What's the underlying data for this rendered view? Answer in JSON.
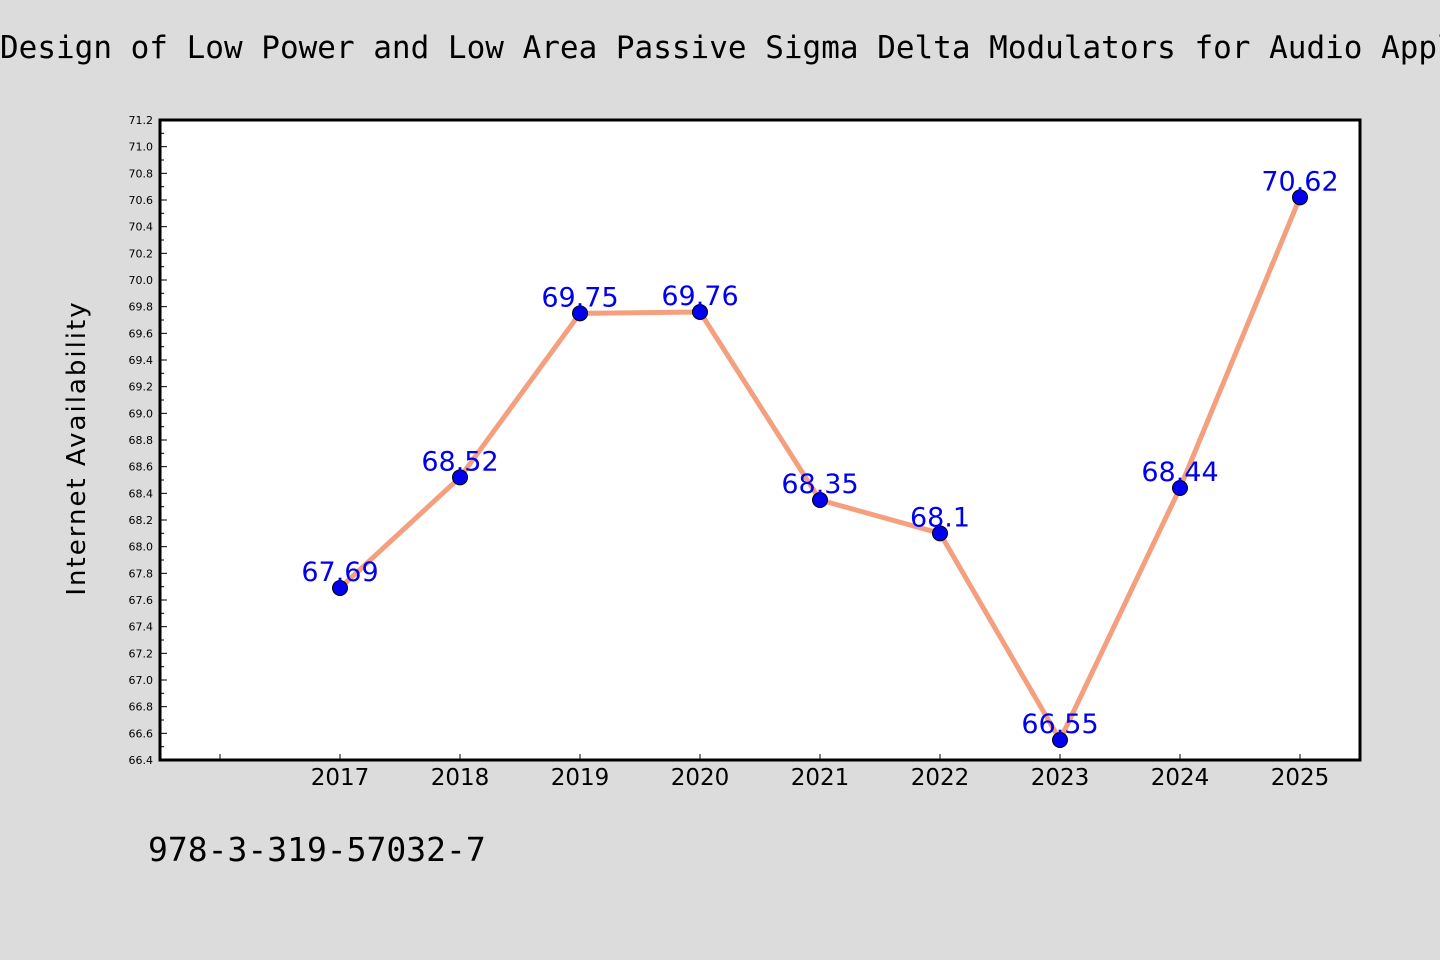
{
  "header": {
    "title": "Design of Low Power and Low Area Passive Sigma Delta Modulators for Audio Applic"
  },
  "footer": {
    "text": "978-3-319-57032-7"
  },
  "chart_data": {
    "type": "line",
    "title": "Design of Low Power and Low Area Passive Sigma Delta Modulators for Audio Applic",
    "xlabel": "",
    "ylabel": "Internet Availability",
    "categories": [
      "2017",
      "2018",
      "2019",
      "2020",
      "2021",
      "2022",
      "2023",
      "2024",
      "2025"
    ],
    "series": [
      {
        "values": [
          67.69,
          68.52,
          69.75,
          69.76,
          68.35,
          68.1,
          66.55,
          68.44,
          70.62
        ],
        "labels": [
          "67.69",
          "68.52",
          "69.75",
          "69.76",
          "68.35",
          "68.1",
          "66.55",
          "68.44",
          "70.62"
        ]
      }
    ],
    "ylim": [
      66.4,
      71.2
    ],
    "yticks": [
      "66.4",
      "66.6",
      "66.8",
      "67.0",
      "67.2",
      "67.4",
      "67.6",
      "67.8",
      "68.0",
      "68.2",
      "68.4",
      "68.6",
      "68.8",
      "69.0",
      "69.2",
      "69.4",
      "69.6",
      "69.8",
      "70.0",
      "70.2",
      "70.4",
      "70.6",
      "70.8",
      "71.0",
      "71.2"
    ],
    "grid": false,
    "legend": "none",
    "colors": {
      "background": "#dcdcdc",
      "plot_background": "#ffffff",
      "line": "#f4a07f",
      "marker": "#0000ee",
      "data_label": "#0000ee"
    }
  }
}
